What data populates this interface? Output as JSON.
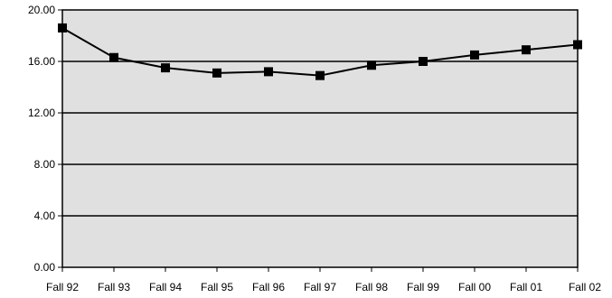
{
  "chart_data": {
    "type": "line",
    "title": "",
    "xlabel": "",
    "ylabel": "",
    "categories": [
      "Fall 92",
      "Fall 93",
      "Fall 94",
      "Fall 95",
      "Fall 96",
      "Fall 97",
      "Fall 98",
      "Fall 99",
      "Fall 00",
      "Fall 01",
      "Fall 02"
    ],
    "series": [
      {
        "values": [
          18.6,
          16.3,
          15.5,
          15.1,
          15.2,
          14.9,
          15.7,
          16.0,
          16.5,
          16.9,
          17.3
        ]
      }
    ],
    "ylim": [
      0,
      20
    ],
    "y_ticks": [
      0,
      4,
      8,
      12,
      16,
      20
    ],
    "y_tick_labels": [
      "0.00",
      "4.00",
      "8.00",
      "12.00",
      "16.00",
      "20.00"
    ],
    "grid": "horizontal",
    "legend": "none",
    "marker": "square",
    "colors": {
      "plot_background": "#e0e0e0",
      "line": "#000000",
      "marker": "#000000",
      "grid": "#000000"
    }
  }
}
